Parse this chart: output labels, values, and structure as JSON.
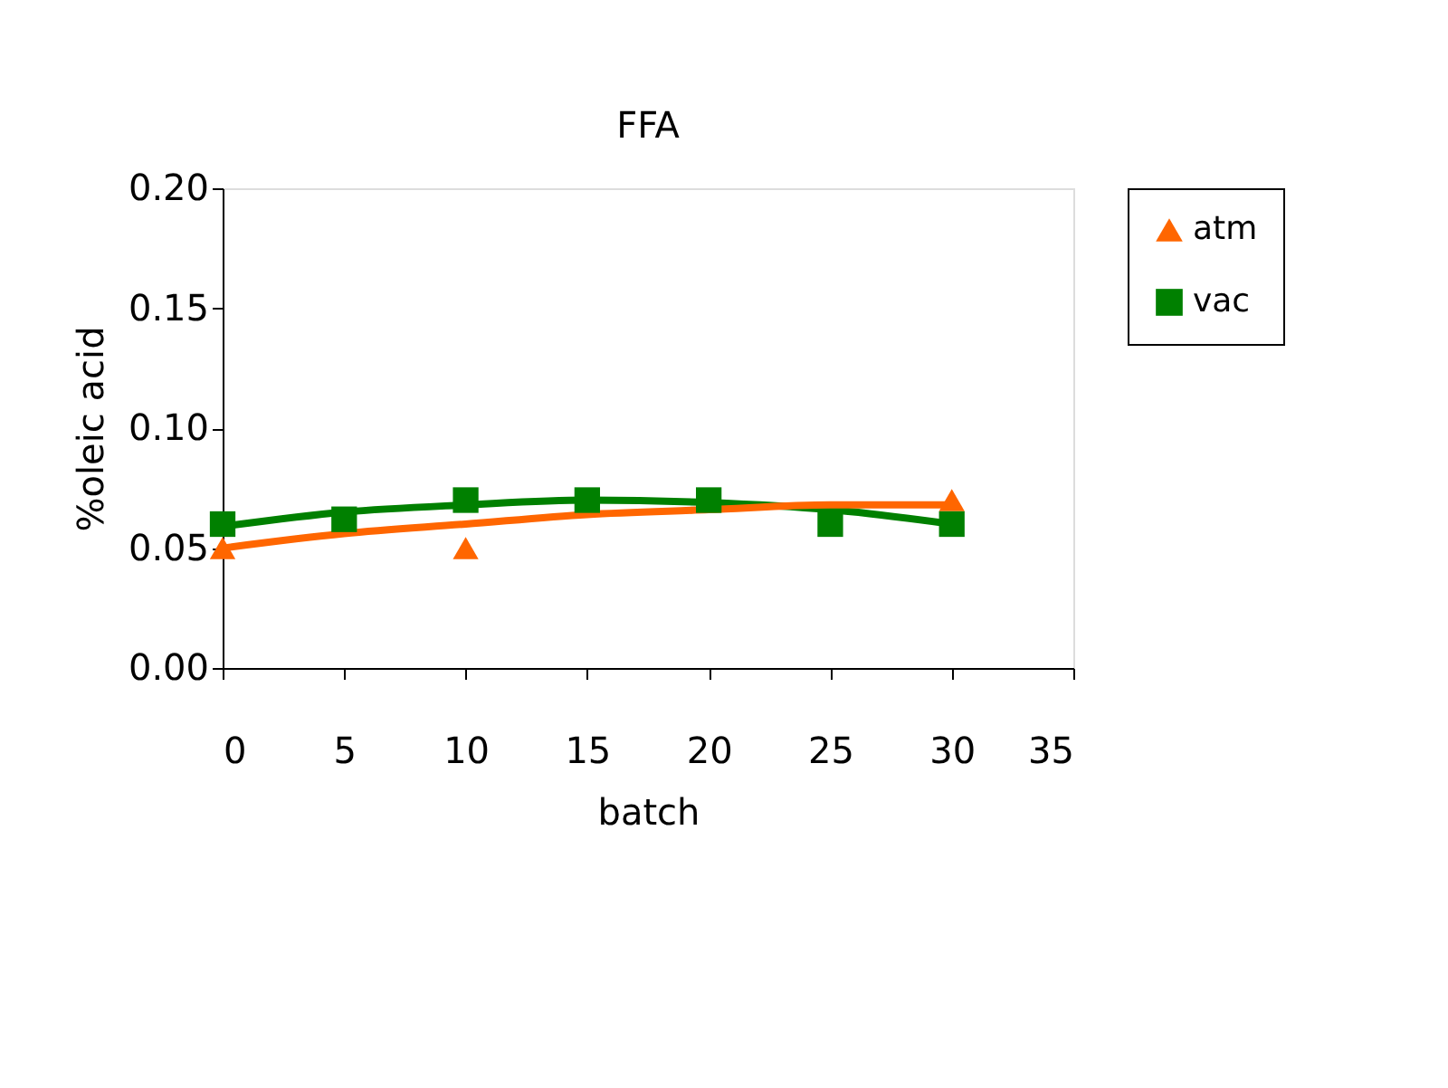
{
  "chart_data": {
    "type": "scatter",
    "title": "FFA",
    "xlabel": "batch",
    "ylabel": "%oleic acid",
    "x": [
      0,
      5,
      10,
      15,
      20,
      25,
      30
    ],
    "xlim": [
      0,
      35
    ],
    "xticks": [
      0,
      5,
      10,
      15,
      20,
      25,
      30,
      35
    ],
    "ylim": [
      0,
      0.2
    ],
    "yticks": [
      {
        "value": 0,
        "label": "0.00"
      },
      {
        "value": 0.05,
        "label": "0.05"
      },
      {
        "value": 0.1,
        "label": "0.10"
      },
      {
        "value": 0.15,
        "label": "0.15"
      },
      {
        "value": 0.2,
        "label": "0.20"
      }
    ],
    "grid": false,
    "legend": "right",
    "series": [
      {
        "name": "atm",
        "color": "#ff6600",
        "marker": "triangle",
        "values": [
          0.05,
          null,
          0.05,
          null,
          null,
          null,
          0.07
        ]
      },
      {
        "name": "vac",
        "color": "#008000",
        "marker": "square",
        "values": [
          0.06,
          0.062,
          0.07,
          0.07,
          0.07,
          0.06,
          0.06
        ]
      },
      {
        "type": "line",
        "color": "#008000",
        "marker": "none",
        "x": [
          0,
          5,
          10,
          15,
          20,
          25,
          30
        ],
        "values": [
          0.059,
          0.065,
          0.068,
          0.07,
          0.069,
          0.066,
          0.06
        ]
      },
      {
        "type": "line",
        "color": "#ff6600",
        "marker": "none",
        "x": [
          0,
          5,
          10,
          15,
          20,
          25,
          30
        ],
        "values": [
          0.05,
          0.056,
          0.06,
          0.064,
          0.066,
          0.068,
          0.068
        ]
      }
    ]
  }
}
